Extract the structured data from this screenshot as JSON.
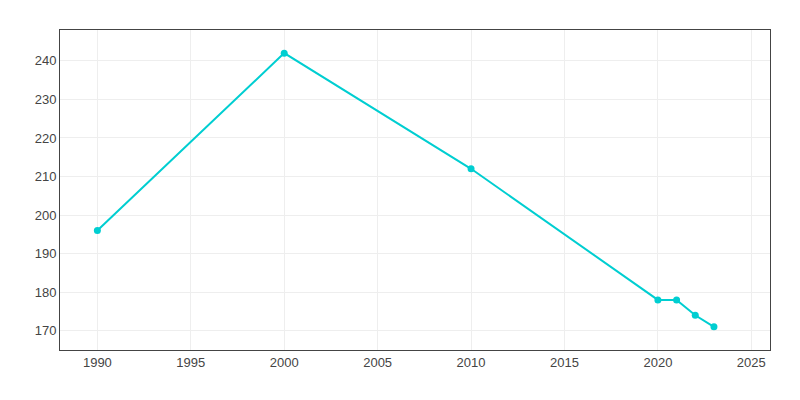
{
  "chart_data": {
    "type": "line",
    "x": [
      1990,
      2000,
      2010,
      2020,
      2021,
      2022,
      2023
    ],
    "values": [
      196,
      242,
      212,
      178,
      178,
      174,
      171
    ],
    "color": "#00CED1",
    "marker": "circle",
    "xlim": [
      1988,
      2026
    ],
    "ylim": [
      165,
      248
    ],
    "xticks": [
      1990,
      1995,
      2000,
      2005,
      2010,
      2015,
      2020,
      2025
    ],
    "yticks": [
      170,
      180,
      190,
      200,
      210,
      220,
      230,
      240
    ],
    "grid": true
  }
}
